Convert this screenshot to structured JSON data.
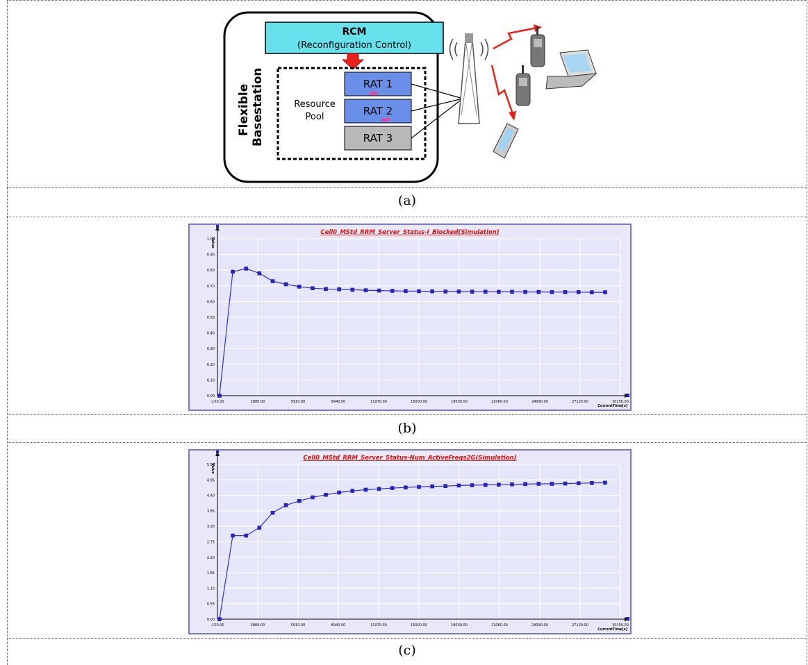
{
  "diagram": {
    "rcm_title": "RCM",
    "rcm_subtitle": "(Reconfiguration Control)",
    "basestation_line1": "Flexible",
    "basestation_line2": "Basestation",
    "pool_line1": "Resource",
    "pool_line2": "Pool",
    "rat1": "RAT 1",
    "rat2": "RAT 2",
    "rat3": "RAT 3",
    "colors": {
      "rcm": "#66e0ea",
      "rat_active": "#6a8fe8",
      "rat_idle": "#b8b8b8",
      "arrow": "#e8221a"
    }
  },
  "captions": {
    "a": "(a)",
    "b": "(b)",
    "c": "(c)"
  },
  "chart_data": [
    {
      "type": "line",
      "title": "Cell0_MStd_RRM_Server_Status-I_Blocked(Simulation)",
      "xlabel": "CurrentTime[s]",
      "ylabel": "Value",
      "xlim": [
        -150,
        30150
      ],
      "ylim": [
        0,
        1.0
      ],
      "x_ticks": [
        "-150.00",
        "2880.00",
        "5910.00",
        "8940.00",
        "11970.00",
        "15000.00",
        "18030.00",
        "21060.00",
        "24090.00",
        "27120.00",
        "30150.00"
      ],
      "x_tick_values": [
        -150,
        2880,
        5910,
        8940,
        11970,
        15000,
        18030,
        21060,
        24090,
        27120,
        30150
      ],
      "y_ticks": [
        "0.00",
        "0.10",
        "0.20",
        "0.30",
        "0.40",
        "0.50",
        "0.60",
        "0.70",
        "0.80",
        "0.90",
        "1.00"
      ],
      "y_tick_values": [
        0,
        0.1,
        0.2,
        0.3,
        0.4,
        0.5,
        0.6,
        0.7,
        0.8,
        0.9,
        1.0
      ],
      "grid": true,
      "x": [
        0,
        1000,
        2000,
        3000,
        4000,
        5000,
        6000,
        7000,
        8000,
        9000,
        10000,
        11000,
        12000,
        13000,
        14000,
        15000,
        16000,
        17000,
        18000,
        19000,
        20000,
        21000,
        22000,
        23000,
        24000,
        25000,
        26000,
        27000,
        28000,
        29000
      ],
      "y": [
        0,
        0.79,
        0.81,
        0.78,
        0.73,
        0.71,
        0.695,
        0.685,
        0.68,
        0.678,
        0.675,
        0.672,
        0.67,
        0.668,
        0.667,
        0.666,
        0.665,
        0.664,
        0.664,
        0.663,
        0.663,
        0.662,
        0.662,
        0.661,
        0.661,
        0.66,
        0.66,
        0.66,
        0.659,
        0.659
      ]
    },
    {
      "type": "line",
      "title": "Cell0_MStd_RRM_Server_Status-Num_ActiveFreqs2G(Simulation)",
      "xlabel": "CurrentTime[s]",
      "ylabel": "Value",
      "xlim": [
        -150,
        30150
      ],
      "ylim": [
        0,
        5.5
      ],
      "x_ticks": [
        "-150.00",
        "2880.00",
        "5910.00",
        "8940.00",
        "11970.00",
        "15000.00",
        "18030.00",
        "21060.00",
        "24090.00",
        "27120.00",
        "30150.00"
      ],
      "x_tick_values": [
        -150,
        2880,
        5910,
        8940,
        11970,
        15000,
        18030,
        21060,
        24090,
        27120,
        30150
      ],
      "y_ticks": [
        "0.00",
        "0.55",
        "1.10",
        "1.65",
        "2.20",
        "2.75",
        "3.30",
        "3.85",
        "4.40",
        "4.95",
        "5.50"
      ],
      "y_tick_values": [
        0,
        0.55,
        1.1,
        1.65,
        2.2,
        2.75,
        3.3,
        3.85,
        4.4,
        4.95,
        5.5
      ],
      "grid": true,
      "x": [
        0,
        1000,
        2000,
        3000,
        4000,
        5000,
        6000,
        7000,
        8000,
        9000,
        10000,
        11000,
        12000,
        13000,
        14000,
        15000,
        16000,
        17000,
        18000,
        19000,
        20000,
        21000,
        22000,
        23000,
        24000,
        25000,
        26000,
        27000,
        28000,
        29000
      ],
      "y": [
        0,
        2.97,
        2.97,
        3.25,
        3.78,
        4.05,
        4.2,
        4.33,
        4.42,
        4.5,
        4.56,
        4.6,
        4.63,
        4.66,
        4.68,
        4.7,
        4.72,
        4.73,
        4.75,
        4.76,
        4.77,
        4.78,
        4.79,
        4.8,
        4.81,
        4.81,
        4.82,
        4.83,
        4.84,
        4.85
      ]
    }
  ]
}
